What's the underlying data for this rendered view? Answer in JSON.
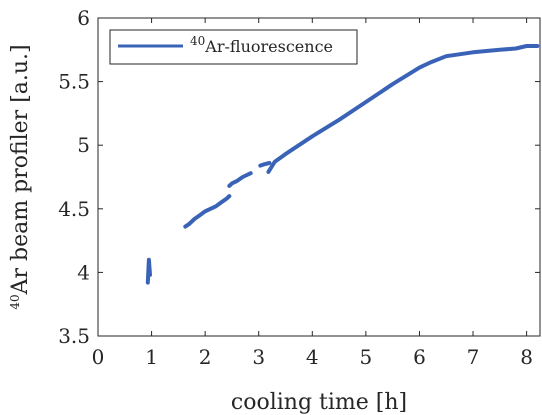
{
  "chart_data": {
    "type": "line",
    "xlabel": "cooling time [h]",
    "ylabel": "Ar beam profiler [a.u.]",
    "ylabel_superscript": "40",
    "xlim": [
      0,
      8.25
    ],
    "ylim": [
      3.5,
      6
    ],
    "xticks": [
      "0",
      "1",
      "2",
      "3",
      "4",
      "5",
      "6",
      "7",
      "8"
    ],
    "yticks": [
      "3.5",
      "4",
      "4.5",
      "5",
      "5.5",
      "6"
    ],
    "grid": false,
    "legend_position": "top-left",
    "color": "#3a63b8",
    "series": [
      {
        "name": "Ar-fluorescence",
        "name_superscript": "40",
        "segments": [
          {
            "x": [
              0.93,
              0.95,
              0.97
            ],
            "y": [
              3.92,
              4.1,
              3.98
            ]
          },
          {
            "x": [
              1.63,
              1.7,
              1.8,
              1.9,
              2.0,
              2.1,
              2.2,
              2.3,
              2.4,
              2.45
            ],
            "y": [
              4.36,
              4.38,
              4.42,
              4.45,
              4.48,
              4.5,
              4.52,
              4.55,
              4.58,
              4.6
            ]
          },
          {
            "x": [
              2.45,
              2.5,
              2.6,
              2.7,
              2.8,
              2.85
            ],
            "y": [
              4.68,
              4.7,
              4.72,
              4.75,
              4.77,
              4.78
            ]
          },
          {
            "x": [
              3.03,
              3.1,
              3.2
            ],
            "y": [
              4.84,
              4.85,
              4.86
            ]
          },
          {
            "x": [
              3.18,
              3.3,
              3.5,
              3.75,
              4.0,
              4.5,
              5.0,
              5.5,
              6.0,
              6.2,
              6.5,
              7.0,
              7.5,
              7.8,
              8.0,
              8.2
            ],
            "y": [
              4.79,
              4.87,
              4.93,
              5.0,
              5.07,
              5.2,
              5.34,
              5.48,
              5.61,
              5.65,
              5.7,
              5.73,
              5.75,
              5.76,
              5.78,
              5.78
            ]
          }
        ]
      }
    ]
  }
}
